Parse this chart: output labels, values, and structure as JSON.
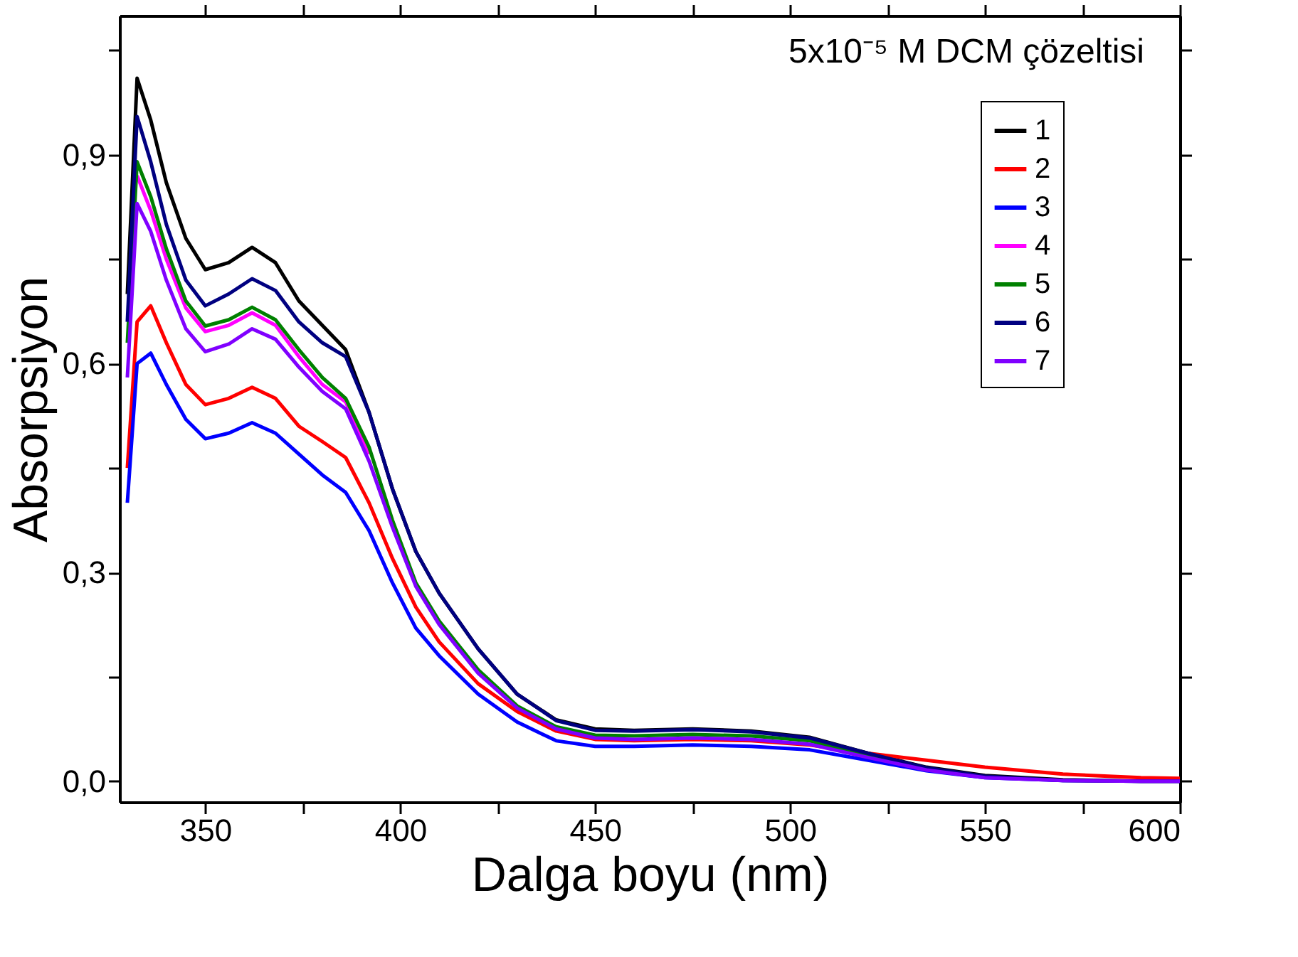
{
  "chart_data": {
    "type": "line",
    "xlabel": "Dalga boyu (nm)",
    "ylabel": "Absorpsiyon",
    "annotations": [
      "5x10⁻⁵ M DCM çözeltisi"
    ],
    "x": [
      330,
      332.5,
      336,
      340,
      345,
      350,
      356,
      362,
      368,
      374,
      380,
      386,
      392,
      398,
      404,
      410,
      420,
      430,
      440,
      450,
      460,
      475,
      490,
      505,
      520,
      535,
      550,
      570,
      590,
      600
    ],
    "series": [
      {
        "name": "1",
        "color": "#000000",
        "values": [
          0.7,
          1.01,
          0.95,
          0.86,
          0.78,
          0.735,
          0.745,
          0.767,
          0.745,
          0.69,
          0.655,
          0.62,
          0.53,
          0.42,
          0.33,
          0.27,
          0.19,
          0.125,
          0.088,
          0.075,
          0.073,
          0.075,
          0.072,
          0.063,
          0.04,
          0.02,
          0.008,
          0.002,
          0,
          0
        ]
      },
      {
        "name": "2",
        "color": "#ff0000",
        "values": [
          0.45,
          0.66,
          0.683,
          0.63,
          0.57,
          0.541,
          0.55,
          0.566,
          0.55,
          0.51,
          0.488,
          0.465,
          0.4,
          0.32,
          0.25,
          0.2,
          0.14,
          0.1,
          0.072,
          0.06,
          0.058,
          0.06,
          0.058,
          0.052,
          0.04,
          0.03,
          0.02,
          0.01,
          0.005,
          0.004
        ]
      },
      {
        "name": "3",
        "color": "#0000ff",
        "values": [
          0.4,
          0.6,
          0.615,
          0.57,
          0.52,
          0.492,
          0.5,
          0.515,
          0.5,
          0.47,
          0.44,
          0.415,
          0.36,
          0.285,
          0.22,
          0.18,
          0.125,
          0.085,
          0.058,
          0.05,
          0.05,
          0.052,
          0.05,
          0.045,
          0.03,
          0.015,
          0.005,
          0.001,
          0,
          0
        ]
      },
      {
        "name": "4",
        "color": "#ff00ff",
        "values": [
          null,
          0.87,
          0.82,
          0.75,
          0.68,
          0.646,
          0.655,
          0.673,
          0.655,
          0.61,
          0.57,
          0.545,
          0.47,
          null,
          null,
          null,
          null,
          null,
          null,
          null,
          null,
          null,
          null,
          null,
          null,
          null,
          null,
          null,
          null,
          null
        ]
      },
      {
        "name": "5",
        "color": "#008000",
        "values": [
          0.63,
          0.89,
          0.84,
          0.765,
          0.69,
          0.654,
          0.663,
          0.681,
          0.663,
          0.62,
          0.58,
          0.55,
          0.48,
          0.375,
          0.285,
          0.23,
          0.16,
          0.108,
          0.078,
          0.066,
          0.065,
          0.067,
          0.065,
          0.058,
          0.037,
          0.018,
          null,
          null,
          null,
          null
        ]
      },
      {
        "name": "6",
        "color": "#000080",
        "values": [
          0.66,
          0.955,
          0.89,
          0.8,
          0.72,
          0.683,
          0.7,
          0.722,
          0.705,
          0.66,
          0.63,
          0.61,
          0.53,
          0.42,
          0.33,
          0.27,
          0.19,
          0.125,
          0.087,
          0.073,
          0.072,
          0.074,
          0.071,
          0.062,
          0.04,
          0.019,
          0.007,
          0.001,
          0,
          0
        ]
      },
      {
        "name": "7",
        "color": "#8000ff",
        "values": [
          0.58,
          0.83,
          0.79,
          0.72,
          0.65,
          0.617,
          0.628,
          0.65,
          0.635,
          0.595,
          0.56,
          0.535,
          0.46,
          0.365,
          0.28,
          0.225,
          0.155,
          0.105,
          0.075,
          0.062,
          0.06,
          0.062,
          0.06,
          0.053,
          0.034,
          0.016,
          0.005,
          0.001,
          0,
          0
        ]
      }
    ],
    "xlim": [
      328,
      600
    ],
    "ylim": [
      -0.03,
      1.1
    ],
    "xticks": [
      350,
      {
        "value": 375,
        "label": null
      },
      400,
      {
        "value": 425,
        "label": null
      },
      450,
      {
        "value": 475,
        "label": null
      },
      500,
      {
        "value": 525,
        "label": null
      },
      550,
      {
        "value": 575,
        "label": null
      },
      600
    ],
    "yticks": [
      {
        "value": 0,
        "label": "0,0"
      },
      {
        "value": 0.15,
        "label": null
      },
      {
        "value": 0.3,
        "label": "0,3"
      },
      {
        "value": 0.45,
        "label": null
      },
      {
        "value": 0.6,
        "label": "0,6"
      },
      {
        "value": 0.75,
        "label": null
      },
      {
        "value": 0.9,
        "label": "0,9"
      },
      {
        "value": 1.05,
        "label": null
      }
    ],
    "legend": "top right",
    "grid": false,
    "marker": "none",
    "line_style": "solid"
  }
}
